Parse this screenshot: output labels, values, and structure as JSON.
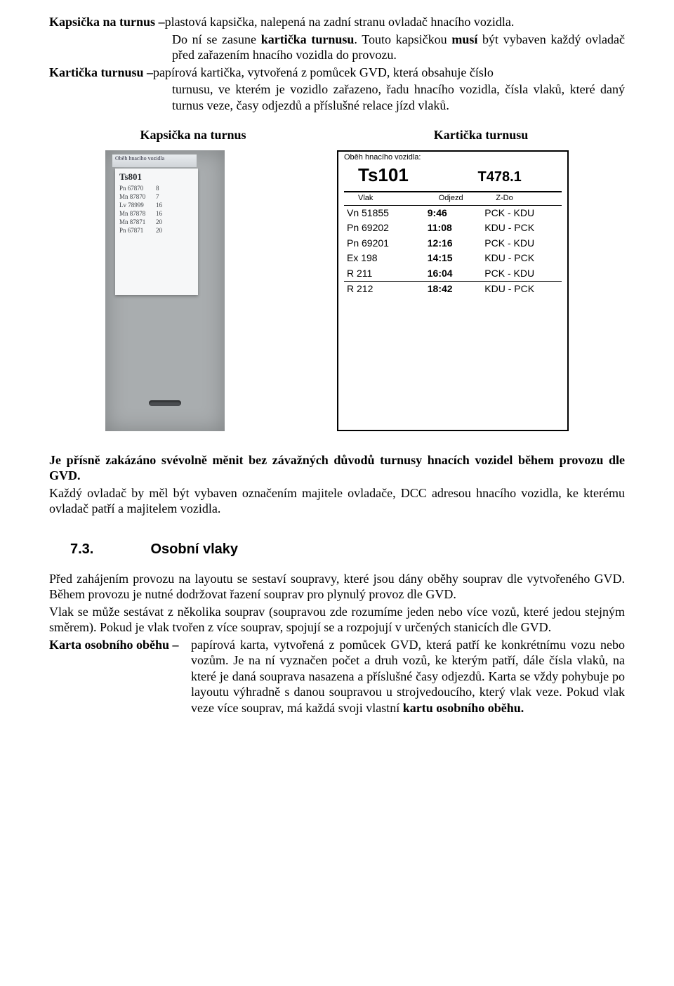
{
  "defs": {
    "kapsicka": {
      "term": "Kapsička na turnus",
      "dash": " – ",
      "body_line1": "plastová kapsička, nalepená na zadní stranu ovladač hnacího vozidla.",
      "body_line2": "Do ní se zasune ",
      "body_line2_bold": "kartička turnusu",
      "body_line2_cont": ". Touto kapsičkou ",
      "body_line2_bold2": "musí",
      "body_line2_cont2": " být vybaven každý ovladač před zařazením hnacího vozidla do provozu."
    },
    "karticka": {
      "term": "Kartička turnusu",
      "dash": " – ",
      "body": "papírová kartička, vytvořená z pomůcek GVD, která obsahuje číslo turnusu, ve kterém je vozidlo zařazeno, řadu hnacího vozidla, čísla vlaků, které daný turnus veze, časy odjezdů a příslušné relace jízd vlaků."
    }
  },
  "labels": {
    "left": "Kapsička na turnus",
    "right": "Kartička turnusu"
  },
  "kapsicka_card": {
    "top_label": "Oběh hnacího vozidla",
    "ts": "Ts801",
    "rows": [
      {
        "a": "Pn 67870",
        "b": "8"
      },
      {
        "a": "Mn 87870",
        "b": "7"
      },
      {
        "a": "Lv 78999",
        "b": "16"
      },
      {
        "a": "Mn 87878",
        "b": "16"
      },
      {
        "a": "Mn 87871",
        "b": "20"
      },
      {
        "a": "Pn 67871",
        "b": "20"
      }
    ]
  },
  "karticka_table": {
    "ob_label": "Oběh hnacího vozidla:",
    "ts": "Ts101",
    "type": "T478.1",
    "cols": {
      "c1": "Vlak",
      "c2": "Odjezd",
      "c3": "Z-Do"
    },
    "rows1": [
      {
        "c1": "Vn 51855",
        "c2": "9:46",
        "c3": "PCK - KDU"
      },
      {
        "c1": "Pn 69202",
        "c2": "11:08",
        "c3": "KDU - PCK"
      },
      {
        "c1": "Pn 69201",
        "c2": "12:16",
        "c3": "PCK - KDU"
      },
      {
        "c1": "Ex 198",
        "c2": "14:15",
        "c3": "KDU - PCK"
      },
      {
        "c1": "R 211",
        "c2": "16:04",
        "c3": "PCK - KDU"
      }
    ],
    "rows2": [
      {
        "c1": "R 212",
        "c2": "18:42",
        "c3": "KDU - PCK"
      }
    ]
  },
  "mid": {
    "p1a": "Je přísně zakázáno svévolně měnit bez závažných důvodů turnusy hnacích vozidel během provozu dle GVD.",
    "p2": "Každý ovladač by měl být vybaven označením majitele ovladače, DCC adresou hnacího vozidla, ke kterému ovladač patří a majitelem vozidla."
  },
  "h73": {
    "num": "7.3.",
    "title": "Osobní vlaky"
  },
  "sec73": {
    "p1": "Před zahájením provozu na layoutu se sestaví soupravy, které jsou dány oběhy souprav dle vytvořeného GVD. Během provozu je nutné dodržovat řazení souprav pro plynulý provoz dle GVD.",
    "p2": "Vlak se může sestávat z několika souprav (soupravou zde rozumíme jeden nebo více vozů, které jedou stejným směrem). Pokud je vlak tvořen z více souprav, spojují se a rozpojují v určených stanicích dle GVD.",
    "karta_term": "Karta osobního oběhu",
    "karta_dash": " – ",
    "karta_body": "papírová karta, vytvořená z pomůcek GVD, která patří ke konkrétnímu vozu nebo vozům. Je na ní vyznačen počet a druh vozů, ke kterým patří, dále čísla vlaků, na které je daná souprava nasazena a příslušné časy odjezdů. Karta se vždy pohybuje po layoutu výhradně s danou soupravou u strojvedoucího, který vlak veze. Pokud vlak veze více souprav, má každá svoji vlastní ",
    "karta_bold_tail": "kartu osobního oběhu.",
    "karta_tail": ""
  }
}
